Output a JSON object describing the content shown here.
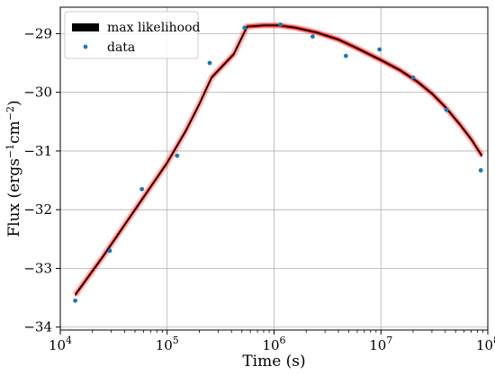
{
  "chart_data": {
    "type": "line",
    "xlabel": "Time (s)",
    "ylabel_main": "Flux (ergs",
    "ylabel_sup1": "−1",
    "ylabel_mid": "cm",
    "ylabel_sup2": "−2",
    "ylabel_end": ")",
    "xscale": "log",
    "xlim": [
      10000,
      100000000
    ],
    "ylim": [
      -34.05,
      -28.55
    ],
    "x_ticks": [
      {
        "base": "10",
        "exp": "4",
        "value": 10000
      },
      {
        "base": "10",
        "exp": "5",
        "value": 100000
      },
      {
        "base": "10",
        "exp": "6",
        "value": 1000000
      },
      {
        "base": "10",
        "exp": "7",
        "value": 10000000
      },
      {
        "base": "10",
        "exp": "8",
        "value": 100000000
      }
    ],
    "y_ticks": [
      {
        "label": "−29",
        "value": -29
      },
      {
        "label": "−30",
        "value": -30
      },
      {
        "label": "−31",
        "value": -31
      },
      {
        "label": "−32",
        "value": -32
      },
      {
        "label": "−33",
        "value": -33
      },
      {
        "label": "−34",
        "value": -34
      }
    ],
    "grid": true,
    "legend_position": "top-left",
    "legend": [
      {
        "label": "max likelihood",
        "kind": "line",
        "color": "#000000"
      },
      {
        "label": "data",
        "kind": "marker",
        "color": "#1f77b4"
      }
    ],
    "series": [
      {
        "name": "max likelihood",
        "color": "#000000",
        "x": [
          13800,
          25000,
          50000,
          100000,
          150000,
          200000,
          260000,
          330000,
          420000,
          560000,
          800000,
          1100000,
          1600000,
          2500000,
          4000000,
          6000000,
          10000000,
          15000000,
          22000000,
          30000000,
          40000000,
          55000000,
          70000000,
          88000000
        ],
        "y": [
          -33.45,
          -32.8,
          -32.0,
          -31.2,
          -30.65,
          -30.2,
          -29.75,
          -29.55,
          -29.35,
          -28.88,
          -28.86,
          -28.86,
          -28.9,
          -28.98,
          -29.1,
          -29.25,
          -29.45,
          -29.62,
          -29.82,
          -30.02,
          -30.25,
          -30.55,
          -30.8,
          -31.08
        ]
      },
      {
        "name": "data",
        "color": "#1f77b4",
        "x": [
          13800,
          29000,
          58000,
          124000,
          250000,
          530000,
          1150000,
          2300000,
          4700000,
          9700000,
          20000000,
          41000000,
          86000000
        ],
        "y": [
          -33.55,
          -32.7,
          -31.65,
          -31.08,
          -29.5,
          -28.9,
          -28.85,
          -29.05,
          -29.38,
          -29.27,
          -29.75,
          -30.3,
          -31.33
        ]
      }
    ],
    "posterior_band": {
      "color": "#ff0000",
      "width": 1.0
    }
  }
}
